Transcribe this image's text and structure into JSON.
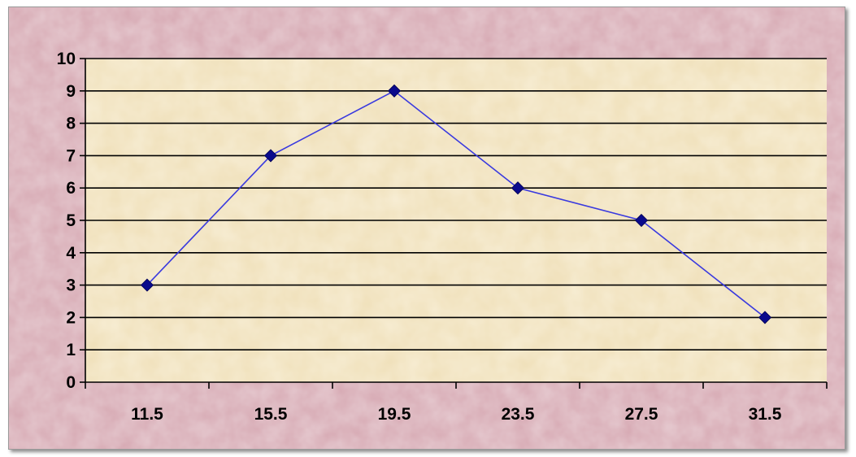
{
  "chart_data": {
    "type": "line",
    "title": "",
    "xlabel": "",
    "ylabel": "",
    "categories": [
      "11.5",
      "15.5",
      "19.5",
      "23.5",
      "27.5",
      "31.5"
    ],
    "series": [
      {
        "values": [
          3,
          7,
          9,
          6,
          5,
          2
        ]
      }
    ],
    "ylim": [
      0,
      10
    ],
    "yticks": [
      0,
      1,
      2,
      3,
      4,
      5,
      6,
      7,
      8,
      9,
      10
    ],
    "grid": true,
    "legend": "none",
    "colors": {
      "line": "#3a3adf",
      "marker": "#0a0a8c",
      "chart_area": "#d6a8b2",
      "plot_area": "#efdfb8",
      "gridline": "#000000"
    }
  }
}
